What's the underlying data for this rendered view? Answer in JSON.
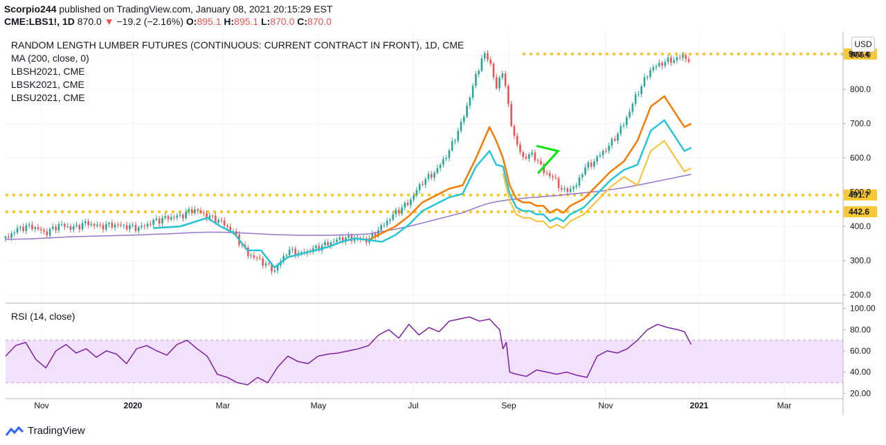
{
  "header": {
    "publisher": "Scorpio244",
    "published_text": "published on TradingView.com, January 08, 2021 20:15:29 EST",
    "symbol": "CME:LBS1!, 1D",
    "last": "870.0",
    "change": "−19.2 (−2.16%)",
    "o_label": "O:",
    "o_value": "895.1",
    "h_label": "H:",
    "h_value": "895.1",
    "l_label": "L:",
    "l_value": "870.0",
    "c_label": "C:",
    "c_value": "870.0"
  },
  "legend": {
    "title": "RANDOM LENGTH LUMBER FUTURES (CONTINUOUS: CURRENT CONTRACT IN FRONT), 1D, CME",
    "items": [
      "MA (200, close, 0)",
      "LBSH2021, CME",
      "LBSK2021, CME",
      "LBSU2021, CME"
    ]
  },
  "currency": "USD",
  "rsi_label": "RSI (14, close)",
  "footer": {
    "brand": "TradingView",
    "icon": "tradingview-logo-icon"
  },
  "colors": {
    "candle_up": "#26a69a",
    "candle_down": "#ef5350",
    "ma": "#9575cd",
    "lbsh": "#f57c00",
    "lbsk": "#26c6da",
    "lbsu": "#fbc02d",
    "level": "#f9c935",
    "rsi": "#7b1fa2",
    "rsi_band": "#f3e1fb",
    "triangle": "#00e600"
  },
  "chart_data": [
    {
      "type": "line",
      "name": "price",
      "x_tick_labels": [
        "Nov",
        "2020",
        "Mar",
        "May",
        "Jul",
        "Sep",
        "Nov",
        "2021",
        "Mar"
      ],
      "y_ticks": [
        200,
        300,
        400,
        500,
        600,
        700,
        800,
        900
      ],
      "ylim": [
        180,
        960
      ],
      "price_levels": [
        903.4,
        491.7,
        442.6
      ],
      "level_labels": [
        "903.4",
        "491.7",
        "442.6"
      ],
      "x": [
        0,
        20,
        40,
        60,
        80,
        100,
        120,
        140,
        160,
        180,
        200,
        220,
        240,
        260,
        280,
        300,
        320,
        340,
        360,
        380,
        400,
        420,
        440,
        460,
        480,
        500,
        520,
        540,
        560,
        580,
        600,
        620,
        640,
        660,
        680,
        700,
        710,
        720,
        730,
        740,
        750,
        760,
        770,
        780,
        790,
        800,
        810,
        820,
        830,
        840,
        850,
        860,
        870,
        880,
        890,
        900,
        920,
        940,
        960,
        980,
        1000,
        1010,
        1020
      ],
      "series": [
        {
          "name": "CME:LBS1!",
          "values": [
            365,
            395,
            400,
            380,
            405,
            395,
            410,
            400,
            405,
            400,
            395,
            415,
            425,
            430,
            450,
            430,
            415,
            380,
            320,
            300,
            270,
            330,
            320,
            335,
            350,
            365,
            365,
            360,
            400,
            440,
            470,
            530,
            560,
            620,
            710,
            840,
            900,
            890,
            800,
            860,
            720,
            640,
            600,
            610,
            600,
            560,
            550,
            530,
            500,
            510,
            520,
            570,
            580,
            600,
            620,
            640,
            700,
            790,
            860,
            880,
            890,
            900,
            870
          ]
        },
        {
          "name": "MA (200, close, 0)",
          "values": [
            362,
            363,
            364,
            366,
            368,
            370,
            371,
            372,
            373,
            374,
            375,
            377,
            378,
            380,
            382,
            383,
            383,
            382,
            380,
            378,
            376,
            375,
            374,
            374,
            374,
            375,
            376,
            378,
            385,
            392,
            400,
            410,
            420,
            430,
            440,
            455,
            462,
            468,
            472,
            475,
            478,
            480,
            482,
            484,
            485,
            487,
            489,
            490,
            492,
            494,
            496,
            498,
            500,
            502,
            504,
            507,
            513,
            520,
            528,
            536,
            544,
            548,
            552
          ]
        }
      ]
    },
    {
      "type": "line",
      "name": "rsi",
      "x_tick_labels": [
        "Nov",
        "2020",
        "Mar",
        "May",
        "Jul",
        "Sep",
        "Nov",
        "2021",
        "Mar"
      ],
      "y_ticks": [
        20,
        40,
        60,
        80,
        100
      ],
      "ylim": [
        15,
        105
      ],
      "bands": [
        30,
        70
      ],
      "x": [
        0,
        15,
        30,
        45,
        60,
        75,
        90,
        105,
        120,
        135,
        150,
        165,
        180,
        195,
        210,
        225,
        240,
        255,
        270,
        285,
        300,
        315,
        330,
        345,
        360,
        375,
        390,
        405,
        420,
        435,
        450,
        465,
        480,
        495,
        510,
        525,
        540,
        555,
        570,
        585,
        600,
        615,
        630,
        645,
        660,
        675,
        690,
        705,
        720,
        735,
        740,
        745,
        750,
        760,
        775,
        790,
        805,
        820,
        835,
        850,
        865,
        880,
        895,
        910,
        925,
        940,
        955,
        970,
        985,
        1000,
        1010,
        1020
      ],
      "values": [
        55,
        65,
        68,
        52,
        44,
        60,
        66,
        58,
        62,
        54,
        60,
        57,
        48,
        62,
        65,
        60,
        56,
        66,
        70,
        62,
        55,
        38,
        35,
        30,
        28,
        35,
        30,
        45,
        55,
        50,
        48,
        55,
        57,
        58,
        60,
        62,
        65,
        75,
        80,
        72,
        85,
        75,
        82,
        78,
        88,
        90,
        92,
        88,
        90,
        80,
        62,
        68,
        40,
        38,
        36,
        42,
        40,
        38,
        40,
        37,
        35,
        55,
        60,
        58,
        62,
        70,
        80,
        85,
        82,
        80,
        78,
        66
      ]
    },
    {
      "type": "line",
      "name": "contracts",
      "x": [
        220,
        260,
        300,
        320,
        340,
        360,
        380,
        400,
        420,
        440,
        460,
        480,
        500,
        520,
        540,
        560,
        580,
        600,
        620,
        640,
        660,
        680,
        700,
        720,
        730,
        740,
        750,
        760,
        770,
        780,
        790,
        800,
        810,
        820,
        830,
        840,
        850,
        860,
        870,
        880,
        890,
        900,
        920,
        940,
        960,
        980,
        1000,
        1010,
        1020
      ],
      "series": [
        {
          "name": "LBSH2021, CME",
          "values": [
            395,
            400,
            425,
            400,
            380,
            330,
            330,
            280,
            310,
            320,
            330,
            340,
            355,
            365,
            360,
            380,
            400,
            430,
            470,
            490,
            510,
            520,
            600,
            690,
            650,
            600,
            520,
            480,
            470,
            470,
            460,
            460,
            440,
            450,
            440,
            460,
            470,
            480,
            500,
            520,
            540,
            560,
            590,
            650,
            750,
            780,
            720,
            690,
            700
          ]
        },
        {
          "name": "LBSK2021, CME",
          "values": null
        },
        {
          "name": "LBSU2021, CME",
          "values": null
        }
      ]
    }
  ]
}
